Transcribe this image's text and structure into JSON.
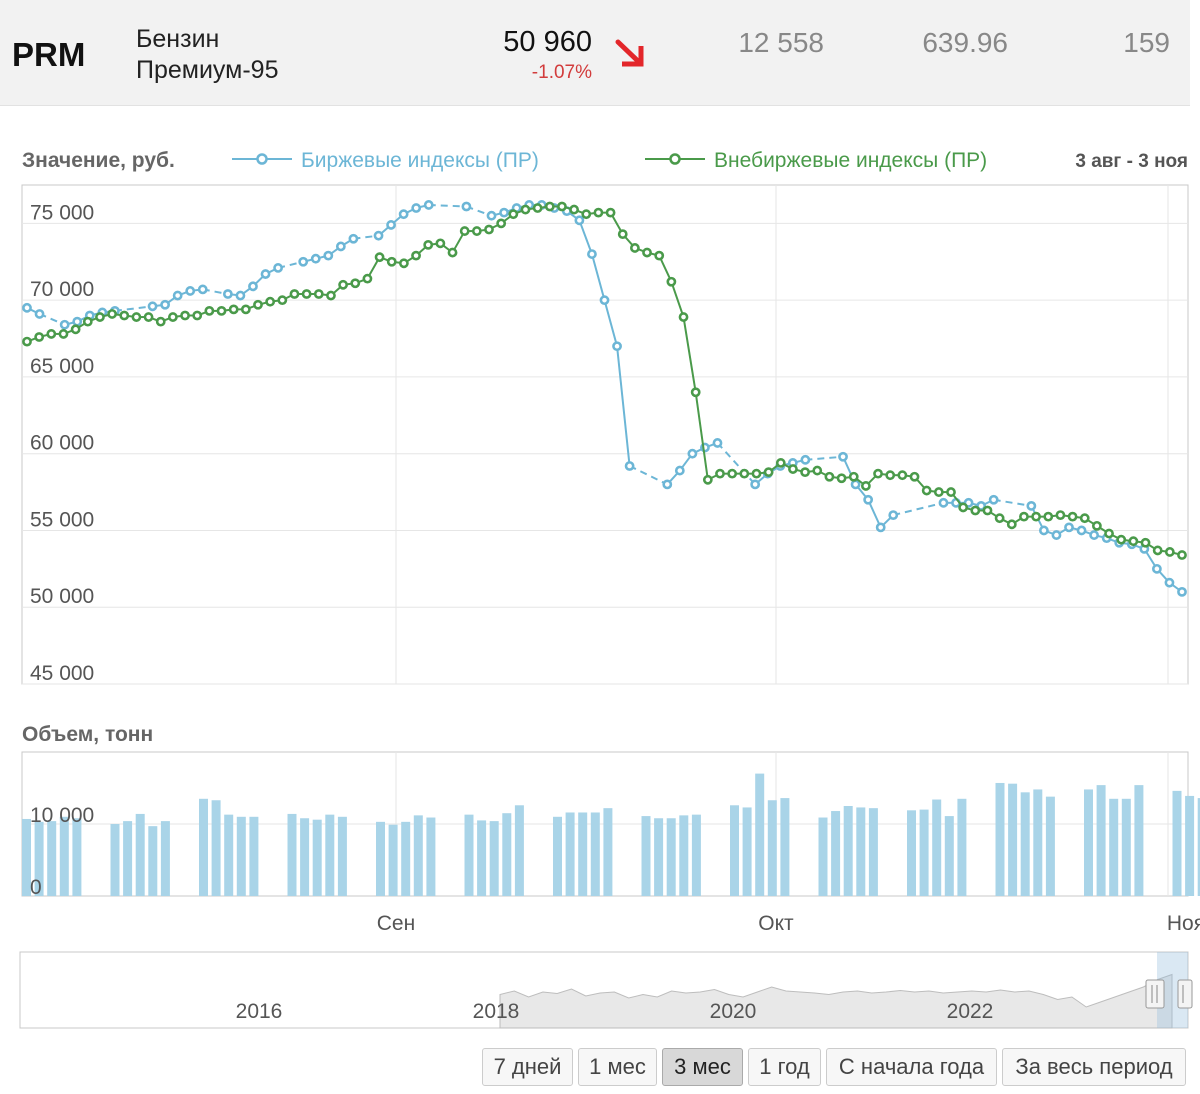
{
  "header": {
    "ticker": "PRM",
    "name_line1": "Бензин",
    "name_line2": "Премиум-95",
    "price": "50 960",
    "change": "-1.07%",
    "stat1": "12 558",
    "stat2": "639.96",
    "stat3": "159",
    "down_color": "#e3262a"
  },
  "range_buttons": [
    {
      "label": "7 дней",
      "active": false
    },
    {
      "label": "1 мес",
      "active": false
    },
    {
      "label": "3 мес",
      "active": true
    },
    {
      "label": "1 год",
      "active": false
    },
    {
      "label": "С начала года",
      "active": false
    },
    {
      "label": "За весь период",
      "active": false
    }
  ],
  "chart_data": [
    {
      "type": "line",
      "title": "Значение, руб.",
      "date_range": "3 авг - 3 ноя",
      "x_ticks": [
        "Сен",
        "Окт",
        "Ноя"
      ],
      "ylim": [
        45000,
        77500
      ],
      "y_ticks": [
        "75 000",
        "70 000",
        "65 000",
        "60 000",
        "55 000",
        "50 000",
        "45 000"
      ],
      "grid": true,
      "legend_position": "top",
      "series": [
        {
          "name": "Биржевые индексы (ПР)",
          "color": "#6cb6d6",
          "style": "dashed-gaps",
          "values": [
            69500,
            69100,
            null,
            68400,
            68600,
            69000,
            69200,
            69300,
            null,
            null,
            69600,
            69700,
            70300,
            70600,
            70700,
            null,
            70400,
            70300,
            70900,
            71700,
            72100,
            null,
            72500,
            72700,
            72900,
            73500,
            74000,
            null,
            74200,
            74900,
            75600,
            76000,
            76200,
            null,
            null,
            76100,
            null,
            75500,
            75700,
            76000,
            76200,
            76200,
            76000,
            75800,
            75200,
            73000,
            70000,
            67000,
            59200,
            null,
            null,
            58000,
            58900,
            60000,
            60400,
            60700,
            null,
            null,
            58000,
            58700,
            59200,
            59400,
            59600,
            null,
            null,
            59800,
            58000,
            57000,
            55200,
            56000,
            null,
            null,
            null,
            56800,
            56800,
            56800,
            56600,
            57000,
            null,
            null,
            56600,
            55000,
            54700,
            55200,
            55000,
            54700,
            54500,
            54200,
            54100,
            53800,
            52500,
            51600,
            51000
          ]
        },
        {
          "name": "Внебиржевые индексы (ПР)",
          "color": "#4a9a4a",
          "style": "solid",
          "values": [
            67300,
            67600,
            67800,
            67800,
            68100,
            68600,
            68900,
            69100,
            69000,
            68900,
            68900,
            68600,
            68900,
            69000,
            69000,
            69300,
            69300,
            69400,
            69400,
            69700,
            69900,
            70000,
            70400,
            70400,
            70400,
            70300,
            71000,
            71100,
            71400,
            72800,
            72500,
            72400,
            72900,
            73600,
            73700,
            73100,
            74500,
            74500,
            74600,
            75000,
            75600,
            75900,
            76000,
            76100,
            76100,
            75900,
            75600,
            75700,
            75700,
            74300,
            73400,
            73100,
            72900,
            71200,
            68900,
            64000,
            58300,
            58700,
            58700,
            58700,
            58700,
            58800,
            59400,
            59000,
            58800,
            58900,
            58500,
            58400,
            58500,
            57900,
            58700,
            58600,
            58600,
            58500,
            57600,
            57500,
            57500,
            56500,
            56300,
            56300,
            55800,
            55400,
            55900,
            55900,
            55900,
            56000,
            55900,
            55800,
            55300,
            54800,
            54400,
            54300,
            54200,
            53700,
            53600,
            53400
          ]
        }
      ]
    },
    {
      "type": "bar",
      "title": "Объем, тонн",
      "ylim": [
        0,
        20000
      ],
      "y_ticks": [
        "10 000",
        "0"
      ],
      "color": "#a9d4e8",
      "values": [
        10700,
        10300,
        10400,
        11000,
        10800,
        10000,
        10400,
        11400,
        9700,
        10400,
        13500,
        13300,
        11300,
        11000,
        11000,
        11400,
        10800,
        10600,
        11300,
        11000,
        10300,
        9900,
        10300,
        11200,
        10900,
        11300,
        10500,
        10400,
        11500,
        12600,
        11000,
        11600,
        11600,
        11600,
        12200,
        11100,
        10800,
        10800,
        11200,
        11300,
        12600,
        12300,
        17000,
        13300,
        13600,
        10900,
        11800,
        12500,
        12300,
        12200,
        11900,
        12000,
        13400,
        11100,
        13500,
        15700,
        15600,
        14400,
        14800,
        13800,
        14800,
        15400,
        13500,
        13500,
        15400,
        14600,
        13900,
        13600,
        13300,
        12800
      ]
    }
  ],
  "navigator": {
    "year_labels": [
      "2016",
      "2018",
      "2020",
      "2022"
    ]
  }
}
